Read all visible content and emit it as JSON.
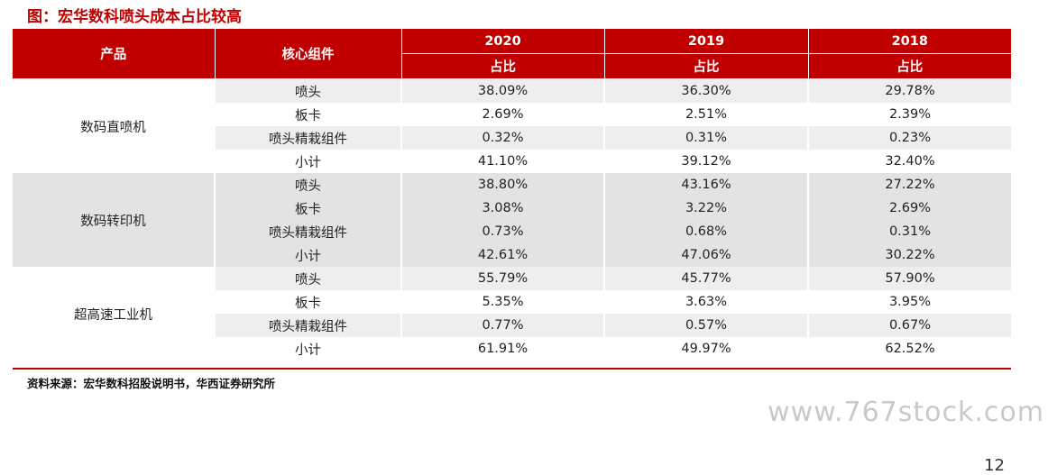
{
  "title": "图：宏华数科喷头成本占比较高",
  "header": {
    "product": "产品",
    "component": "核心组件",
    "years": [
      "2020",
      "2019",
      "2018"
    ],
    "ratio_label": "占比"
  },
  "groups": [
    {
      "product": "数码直喷机",
      "rows": [
        {
          "component": "喷头",
          "values": [
            "38.09%",
            "36.30%",
            "29.78%"
          ]
        },
        {
          "component": "板卡",
          "values": [
            "2.69%",
            "2.51%",
            "2.39%"
          ]
        },
        {
          "component": "喷头精栽组件",
          "values": [
            "0.32%",
            "0.31%",
            "0.23%"
          ]
        },
        {
          "component": "小计",
          "values": [
            "41.10%",
            "39.12%",
            "32.40%"
          ]
        }
      ]
    },
    {
      "product": "数码转印机",
      "rows": [
        {
          "component": "喷头",
          "values": [
            "38.80%",
            "43.16%",
            "27.22%"
          ]
        },
        {
          "component": "板卡",
          "values": [
            "3.08%",
            "3.22%",
            "2.69%"
          ]
        },
        {
          "component": "喷头精栽组件",
          "values": [
            "0.73%",
            "0.68%",
            "0.31%"
          ]
        },
        {
          "component": "小计",
          "values": [
            "42.61%",
            "47.06%",
            "30.22%"
          ]
        }
      ]
    },
    {
      "product": "超高速工业机",
      "rows": [
        {
          "component": "喷头",
          "values": [
            "55.79%",
            "45.77%",
            "57.90%"
          ]
        },
        {
          "component": "板卡",
          "values": [
            "5.35%",
            "3.63%",
            "3.95%"
          ]
        },
        {
          "component": "喷头精栽组件",
          "values": [
            "0.77%",
            "0.57%",
            "0.67%"
          ]
        },
        {
          "component": "小计",
          "values": [
            "61.91%",
            "49.97%",
            "62.52%"
          ]
        }
      ]
    }
  ],
  "source": "资料来源：宏华数科招股说明书，华西证券研究所",
  "watermark": "www.767stock.com",
  "page_number": "12"
}
